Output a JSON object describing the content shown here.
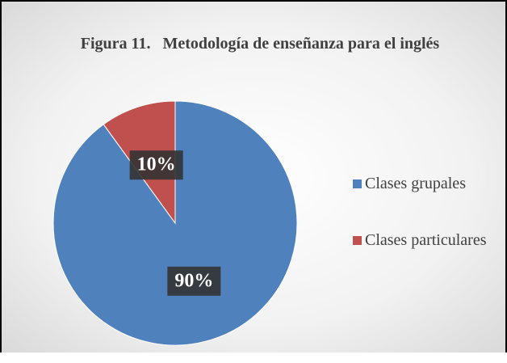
{
  "chart_data": {
    "type": "pie",
    "title": "Figura 11.   Metodología de enseñanza para el inglés",
    "categories": [
      "Clases grupales",
      "Clases particulares"
    ],
    "values": [
      90,
      10
    ],
    "value_labels": [
      "90%",
      "10%"
    ],
    "colors": [
      "#4f81bd",
      "#c0504d"
    ],
    "legend": "right"
  }
}
